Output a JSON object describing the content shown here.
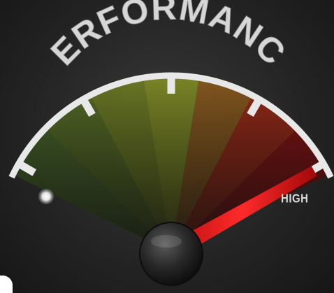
{
  "title": "PERFORMANCE",
  "scale_label_high": "HIGH",
  "gauge_level": 0.95,
  "colors": {
    "segments": [
      "#4b6a2c",
      "#586f27",
      "#6e7c24",
      "#7f8b25",
      "#8a5a1e",
      "#9b2a18",
      "#8a1414"
    ],
    "needle": "#e11a1a",
    "rim": "#e8e8e8",
    "background": "#222222"
  },
  "icons": {
    "needle_hub": "black-knob",
    "indicator_light": "glow-dot"
  }
}
